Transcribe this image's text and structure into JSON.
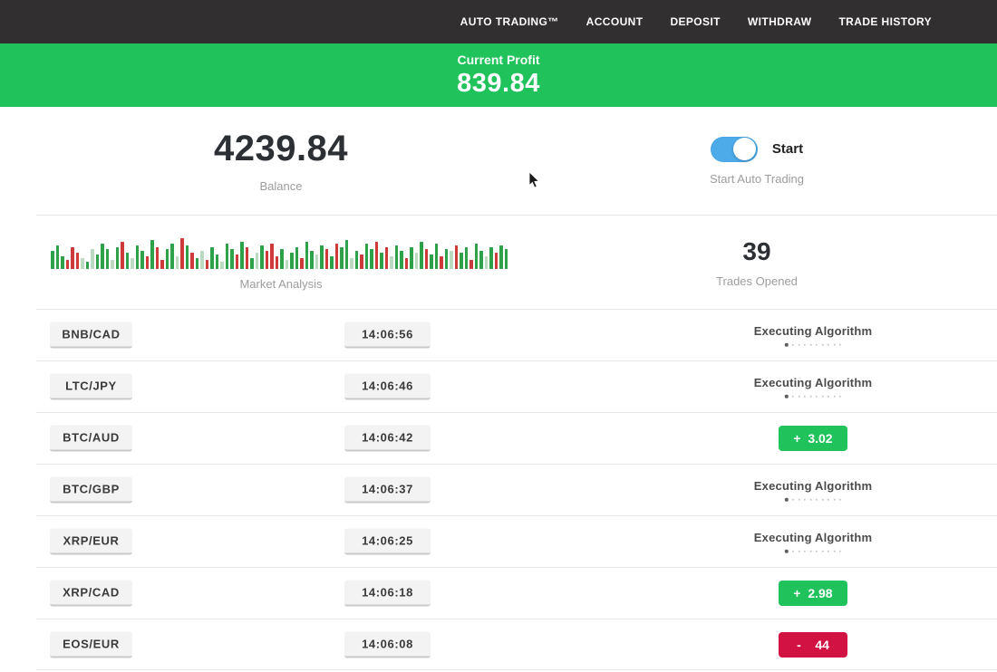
{
  "nav": {
    "items": [
      {
        "label": "AUTO TRADING™"
      },
      {
        "label": "ACCOUNT"
      },
      {
        "label": "DEPOSIT"
      },
      {
        "label": "WITHDRAW"
      },
      {
        "label": "TRADE HISTORY"
      }
    ]
  },
  "profit_banner": {
    "label": "Current Profit",
    "value": "839.84"
  },
  "stats": {
    "balance": {
      "value": "4239.84",
      "label": "Balance"
    },
    "auto_trading": {
      "toggle_state": "on",
      "toggle_label": "Start",
      "label": "Start Auto Trading"
    },
    "market_analysis": {
      "label": "Market Analysis"
    },
    "trades_opened": {
      "value": "39",
      "label": "Trades Opened"
    }
  },
  "colors": {
    "accent_green": "#20c25c",
    "accent_red": "#d11243",
    "toggle_blue": "#4dabea",
    "navbar_bg": "#312f2f",
    "chart_green": "#2ea14b",
    "chart_red": "#cc3a3a"
  },
  "chart_bars": [
    "g20",
    "g26",
    "g14",
    "r10",
    "r24",
    "r18",
    "p12",
    "g8",
    "p22",
    "g16",
    "g28",
    "g22",
    "p10",
    "g24",
    "r30",
    "g18",
    "p12",
    "g26",
    "g20",
    "r14",
    "g32",
    "r24",
    "r10",
    "g22",
    "g28",
    "p14",
    "r34",
    "g26",
    "r18",
    "g12",
    "p20",
    "r10",
    "g24",
    "g16",
    "p8",
    "g28",
    "g22",
    "r16",
    "g30",
    "r24",
    "g12",
    "p18",
    "g26",
    "r20",
    "r28",
    "r14",
    "g22",
    "p10",
    "g18",
    "g24",
    "r12",
    "g30",
    "g20",
    "p16",
    "g26",
    "r22",
    "g14",
    "r28",
    "g24",
    "g32",
    "p12",
    "g20",
    "r16",
    "g28",
    "g22",
    "r30",
    "g18",
    "r24",
    "p14",
    "g26",
    "g20",
    "r12",
    "g24",
    "p18",
    "g30",
    "r22",
    "g16",
    "g28",
    "r14",
    "g22",
    "p20",
    "r26",
    "g18",
    "g24",
    "r10",
    "g28",
    "g20",
    "p14",
    "g24",
    "r18",
    "g26",
    "g22"
  ],
  "executing_dots_count": 10,
  "rows": [
    {
      "pair": "BNB/CAD",
      "time": "14:06:56",
      "status": {
        "type": "executing",
        "label": "Executing Algorithm"
      }
    },
    {
      "pair": "LTC/JPY",
      "time": "14:06:46",
      "status": {
        "type": "executing",
        "label": "Executing Algorithm"
      }
    },
    {
      "pair": "BTC/AUD",
      "time": "14:06:42",
      "status": {
        "type": "profit",
        "label": "+  3.02"
      }
    },
    {
      "pair": "BTC/GBP",
      "time": "14:06:37",
      "status": {
        "type": "executing",
        "label": "Executing Algorithm"
      }
    },
    {
      "pair": "XRP/EUR",
      "time": "14:06:25",
      "status": {
        "type": "executing",
        "label": "Executing Algorithm"
      }
    },
    {
      "pair": "XRP/CAD",
      "time": "14:06:18",
      "status": {
        "type": "profit",
        "label": "+  2.98"
      }
    },
    {
      "pair": "EOS/EUR",
      "time": "14:06:08",
      "status": {
        "type": "loss",
        "label": "-    44"
      }
    }
  ]
}
